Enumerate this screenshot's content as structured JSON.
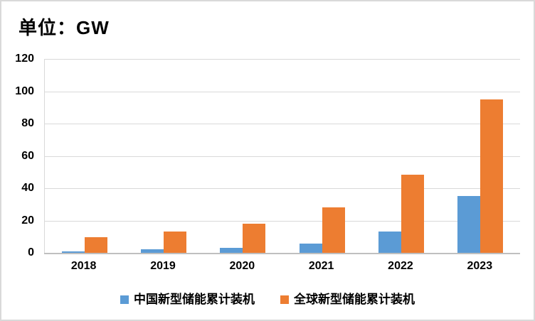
{
  "unit_label": "单位：GW",
  "colors": {
    "china_series": "#5B9BD5",
    "global_series": "#ED7D31",
    "gridline": "#D9D9D9",
    "axis_line": "#BFBFBF",
    "text": "#000000",
    "frame_border": "#D9D9D9"
  },
  "chart_data": {
    "type": "bar",
    "title": "单位：GW",
    "categories": [
      "2018",
      "2019",
      "2020",
      "2021",
      "2022",
      "2023"
    ],
    "series": [
      {
        "id": "china",
        "name": "中国新型储能累计装机",
        "color": "#5B9BD5",
        "values": [
          1.1,
          2.0,
          3.3,
          5.7,
          13.1,
          35.0
        ]
      },
      {
        "id": "global",
        "name": "全球新型储能累计装机",
        "color": "#ED7D31",
        "values": [
          9.8,
          13.2,
          18.0,
          28.0,
          48.5,
          95.0
        ]
      }
    ],
    "xlabel": "",
    "ylabel": "",
    "ylim": [
      0,
      120
    ],
    "yticks": [
      0,
      20,
      40,
      60,
      80,
      100,
      120
    ],
    "grid": true,
    "legend_position": "bottom"
  }
}
